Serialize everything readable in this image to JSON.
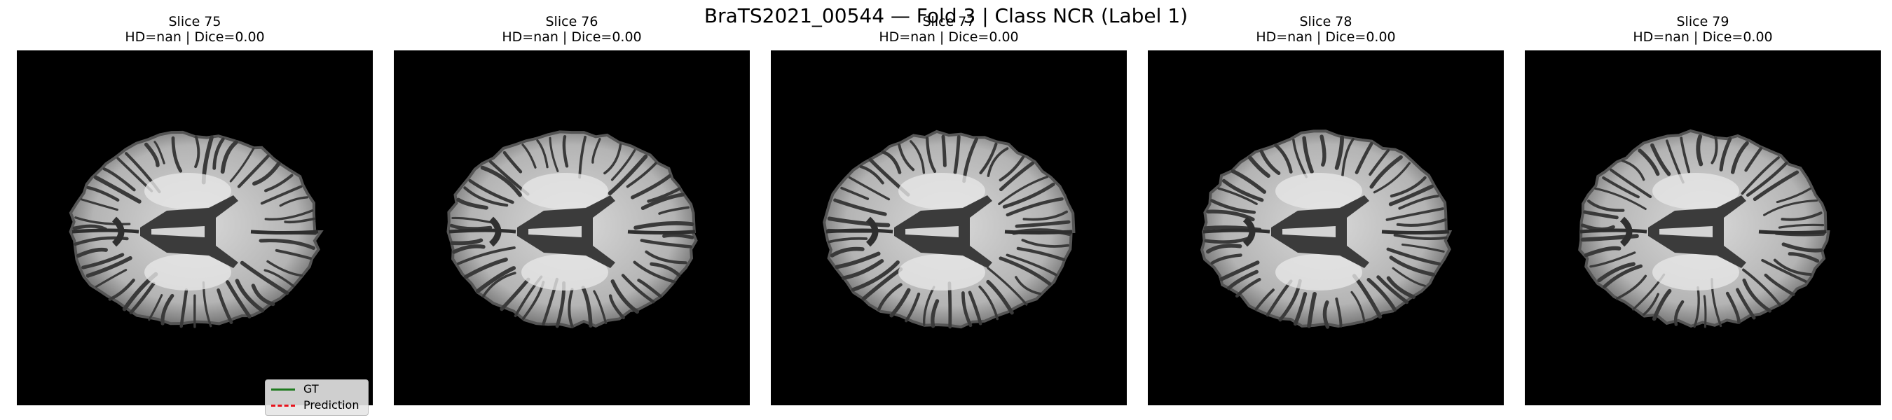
{
  "figure": {
    "title": "BraTS2021_00544 — Fold 3 | Class NCR (Label 1)"
  },
  "panels": [
    {
      "slice_label": "Slice 75",
      "metrics": "HD=nan | Dice=0.00"
    },
    {
      "slice_label": "Slice 76",
      "metrics": "HD=nan | Dice=0.00"
    },
    {
      "slice_label": "Slice 77",
      "metrics": "HD=nan | Dice=0.00"
    },
    {
      "slice_label": "Slice 78",
      "metrics": "HD=nan | Dice=0.00"
    },
    {
      "slice_label": "Slice 79",
      "metrics": "HD=nan | Dice=0.00"
    }
  ],
  "legend": {
    "gt_label": "GT",
    "pred_label": "Prediction",
    "gt_color": "#1f7a1f",
    "pred_color": "#e8121b"
  }
}
